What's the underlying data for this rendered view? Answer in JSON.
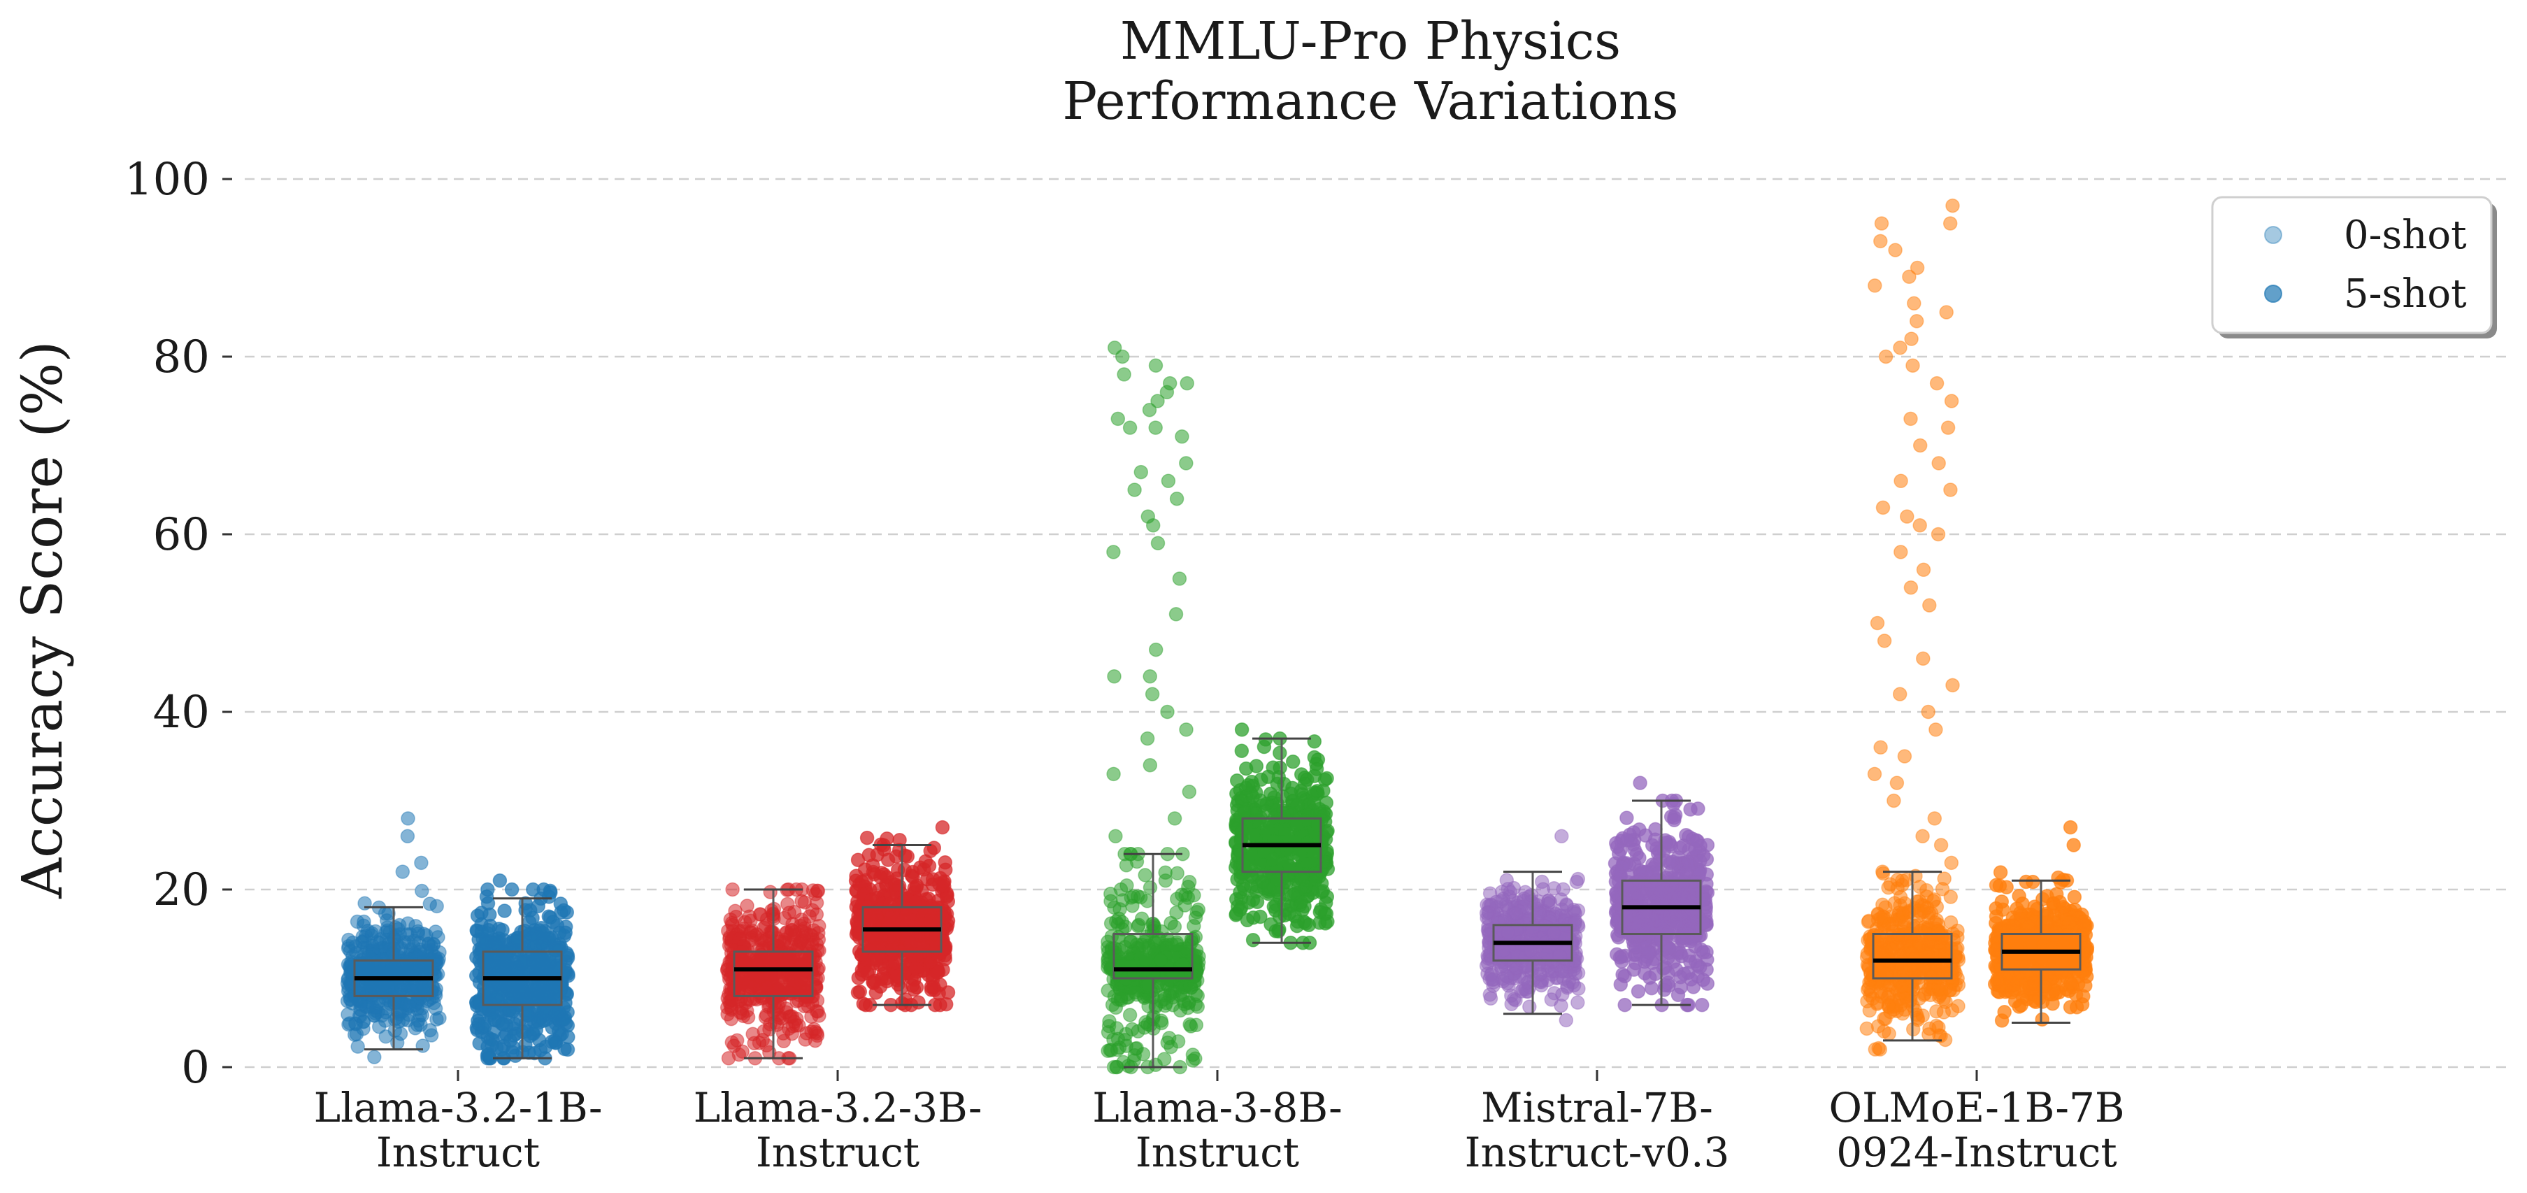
{
  "chart_data": {
    "type": "box-strip",
    "title": "MMLU-Pro Physics\nPerformance Variations",
    "title_lines": [
      "MMLU-Pro Physics",
      "Performance Variations"
    ],
    "ylabel": "Accuracy Score (%)",
    "ylim": [
      0,
      100
    ],
    "yticks": [
      "0",
      "20",
      "40",
      "60",
      "80",
      "100"
    ],
    "grid": "horizontal dashed",
    "legend": {
      "placement": "top-right",
      "entries": [
        {
          "label": "0-shot",
          "color": "#1f77b4",
          "alpha": 0.4
        },
        {
          "label": "5-shot",
          "color": "#1f77b4",
          "alpha": 0.7
        }
      ]
    },
    "categories": [
      {
        "label_lines": [
          "Llama-3.2-1B-",
          "Instruct"
        ],
        "color": "#1f77b4",
        "groups": [
          {
            "name": "0-shot",
            "whisker_low": 2,
            "q1": 8,
            "median": 10,
            "q3": 12,
            "whisker_high": 18,
            "cloud_min": 1,
            "cloud_max": 20,
            "n": 480,
            "outliers": [
              22,
              23,
              26,
              28
            ]
          },
          {
            "name": "5-shot",
            "whisker_low": 1,
            "q1": 7,
            "median": 10,
            "q3": 13,
            "whisker_high": 19,
            "cloud_min": 1,
            "cloud_max": 20,
            "n": 480,
            "outliers": [
              20,
              21
            ]
          }
        ]
      },
      {
        "label_lines": [
          "Llama-3.2-3B-",
          "Instruct"
        ],
        "color": "#d62728",
        "groups": [
          {
            "name": "0-shot",
            "whisker_low": 1,
            "q1": 8,
            "median": 11,
            "q3": 13,
            "whisker_high": 20,
            "cloud_min": 1,
            "cloud_max": 20,
            "n": 480,
            "outliers": []
          },
          {
            "name": "5-shot",
            "whisker_low": 7,
            "q1": 13,
            "median": 15.5,
            "q3": 18,
            "whisker_high": 25,
            "cloud_min": 7,
            "cloud_max": 26,
            "n": 480,
            "outliers": [
              27
            ]
          }
        ]
      },
      {
        "label_lines": [
          "Llama-3-8B-",
          "Instruct"
        ],
        "color": "#2ca02c",
        "groups": [
          {
            "name": "0-shot",
            "whisker_low": 0,
            "q1": 10,
            "median": 11,
            "q3": 15,
            "whisker_high": 24,
            "cloud_min": 0,
            "cloud_max": 24,
            "n": 480,
            "outliers": [
              26,
              28,
              31,
              33,
              34,
              37,
              38,
              40,
              42,
              44,
              44,
              47,
              51,
              55,
              58,
              59,
              61,
              62,
              64,
              65,
              66,
              67,
              68,
              71,
              72,
              72,
              73,
              74,
              75,
              76,
              77,
              77,
              78,
              79,
              80,
              81
            ]
          },
          {
            "name": "5-shot",
            "whisker_low": 14,
            "q1": 22,
            "median": 25,
            "q3": 28,
            "whisker_high": 37,
            "cloud_min": 14,
            "cloud_max": 37,
            "n": 480,
            "outliers": [
              38
            ]
          }
        ]
      },
      {
        "label_lines": [
          "Mistral-7B-",
          "Instruct-v0.3"
        ],
        "color": "#9467bd",
        "groups": [
          {
            "name": "0-shot",
            "whisker_low": 6,
            "q1": 12,
            "median": 14,
            "q3": 16,
            "whisker_high": 22,
            "cloud_min": 4,
            "cloud_max": 25,
            "n": 480,
            "outliers": [
              26
            ]
          },
          {
            "name": "5-shot",
            "whisker_low": 7,
            "q1": 15,
            "median": 18,
            "q3": 21,
            "whisker_high": 30,
            "cloud_min": 7,
            "cloud_max": 30,
            "n": 480,
            "outliers": [
              32
            ]
          }
        ]
      },
      {
        "label_lines": [
          "OLMoE-1B-7B",
          "0924-Instruct"
        ],
        "color": "#ff7f0e",
        "groups": [
          {
            "name": "0-shot",
            "whisker_low": 3,
            "q1": 10,
            "median": 12,
            "q3": 15,
            "whisker_high": 22,
            "cloud_min": 2,
            "cloud_max": 22,
            "n": 480,
            "outliers": [
              23,
              25,
              26,
              28,
              30,
              32,
              33,
              35,
              36,
              38,
              40,
              42,
              43,
              46,
              48,
              50,
              52,
              54,
              56,
              58,
              60,
              61,
              62,
              63,
              65,
              66,
              68,
              70,
              72,
              73,
              75,
              77,
              79,
              80,
              81,
              82,
              84,
              85,
              86,
              88,
              89,
              90,
              92,
              93,
              95,
              95,
              97
            ]
          },
          {
            "name": "5-shot",
            "whisker_low": 5,
            "q1": 11,
            "median": 13,
            "q3": 15,
            "whisker_high": 21,
            "cloud_min": 5,
            "cloud_max": 24,
            "n": 480,
            "outliers": [
              25,
              27
            ]
          }
        ]
      }
    ]
  }
}
